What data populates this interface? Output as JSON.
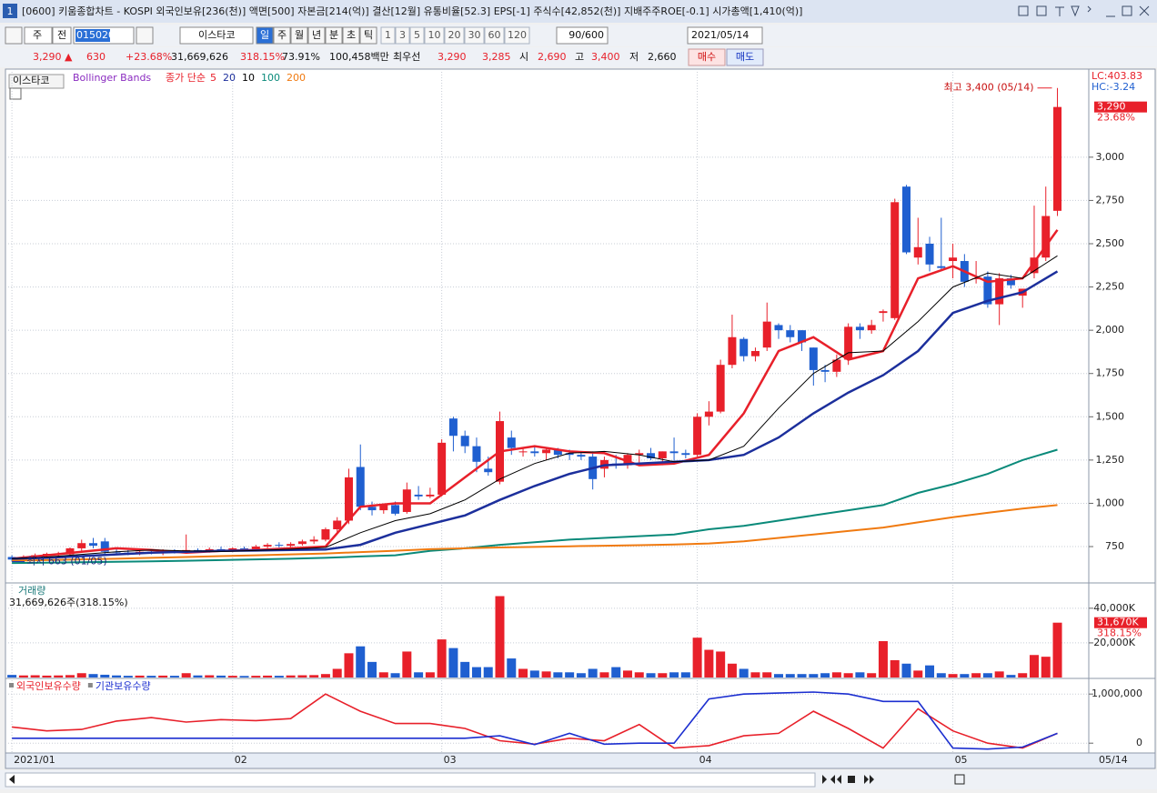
{
  "window": {
    "icon": "1",
    "title": "[0600] 키움종합차트 - KOSPI 외국인보유[236(천)] 액면[500] 자본금[214(억)] 결산[12월] 유통비율[52.3] EPS[-1] 주식수[42,852(천)] 지배주주ROE[-0.1] 시가총액[1,410(억)]"
  },
  "toolbar": {
    "market": "주",
    "range": "전",
    "code": "015020",
    "name": "이스타코",
    "periods": [
      "일",
      "주",
      "월",
      "년",
      "분",
      "초",
      "틱"
    ],
    "intervals": [
      "1",
      "3",
      "5",
      "10",
      "20",
      "30",
      "60",
      "120"
    ],
    "count": "90/600",
    "date": "2021/05/14"
  },
  "quote": {
    "price": "3,290 ▲",
    "change": "630",
    "rate": "+23.68%",
    "volume": "31,669,626",
    "volume_rate": "318.15%",
    "ratio": "73.91%",
    "amount": "100,458백만",
    "best": "최우선",
    "ask": "3,290",
    "bid": "3,285",
    "open_label": "시",
    "open": "2,690",
    "high_label": "고",
    "high": "3,400",
    "low_label": "저",
    "low": "2,660",
    "buy": "매수",
    "sell": "매도"
  },
  "chart_data": [
    {
      "type": "candlestick",
      "name": "이스타코",
      "indicator": "Bollinger Bands",
      "ma_label": "종가 단순",
      "ohlc": [
        [
          690,
          700,
          663,
          675
        ],
        [
          675,
          700,
          670,
          690
        ],
        [
          690,
          710,
          680,
          700
        ],
        [
          700,
          715,
          690,
          708
        ],
        [
          705,
          720,
          695,
          710
        ],
        [
          705,
          745,
          700,
          740
        ],
        [
          740,
          790,
          725,
          770
        ],
        [
          770,
          800,
          740,
          755
        ],
        [
          780,
          800,
          700,
          720
        ],
        [
          720,
          740,
          705,
          715
        ],
        [
          715,
          730,
          700,
          710
        ],
        [
          710,
          725,
          700,
          720
        ],
        [
          720,
          730,
          705,
          712
        ],
        [
          712,
          735,
          700,
          725
        ],
        [
          725,
          735,
          710,
          718
        ],
        [
          718,
          820,
          710,
          730
        ],
        [
          730,
          740,
          715,
          725
        ],
        [
          725,
          745,
          715,
          735
        ],
        [
          735,
          750,
          720,
          728
        ],
        [
          728,
          745,
          720,
          740
        ],
        [
          740,
          750,
          725,
          735
        ],
        [
          735,
          760,
          728,
          750
        ],
        [
          750,
          770,
          740,
          760
        ],
        [
          760,
          775,
          745,
          755
        ],
        [
          755,
          775,
          745,
          765
        ],
        [
          765,
          790,
          755,
          780
        ],
        [
          780,
          810,
          765,
          790
        ],
        [
          790,
          860,
          780,
          850
        ],
        [
          850,
          920,
          830,
          900
        ],
        [
          900,
          1200,
          880,
          1150
        ],
        [
          1210,
          1340,
          960,
          980
        ],
        [
          980,
          1010,
          930,
          960
        ],
        [
          960,
          1000,
          940,
          990
        ],
        [
          990,
          1010,
          930,
          940
        ],
        [
          950,
          1120,
          940,
          1080
        ],
        [
          1050,
          1100,
          1020,
          1040
        ],
        [
          1040,
          1090,
          1030,
          1050
        ],
        [
          1050,
          1370,
          1040,
          1350
        ],
        [
          1490,
          1500,
          1300,
          1390
        ],
        [
          1390,
          1420,
          1290,
          1330
        ],
        [
          1330,
          1380,
          1180,
          1240
        ],
        [
          1200,
          1270,
          1160,
          1180
        ],
        [
          1125,
          1530,
          1110,
          1475
        ],
        [
          1380,
          1420,
          1280,
          1320
        ],
        [
          1300,
          1320,
          1270,
          1300
        ],
        [
          1300,
          1330,
          1270,
          1290
        ],
        [
          1290,
          1320,
          1250,
          1310
        ],
        [
          1310,
          1320,
          1260,
          1280
        ],
        [
          1290,
          1310,
          1250,
          1280
        ],
        [
          1280,
          1300,
          1250,
          1270
        ],
        [
          1270,
          1300,
          1080,
          1140
        ],
        [
          1200,
          1270,
          1150,
          1250
        ],
        [
          1230,
          1280,
          1200,
          1220
        ],
        [
          1220,
          1290,
          1200,
          1280
        ],
        [
          1280,
          1310,
          1230,
          1290
        ],
        [
          1290,
          1320,
          1250,
          1260
        ],
        [
          1260,
          1300,
          1220,
          1300
        ],
        [
          1300,
          1380,
          1250,
          1290
        ],
        [
          1290,
          1310,
          1260,
          1280
        ],
        [
          1280,
          1520,
          1270,
          1500
        ],
        [
          1500,
          1590,
          1450,
          1530
        ],
        [
          1530,
          1830,
          1520,
          1800
        ],
        [
          1800,
          2090,
          1780,
          1960
        ],
        [
          1950,
          1960,
          1820,
          1850
        ],
        [
          1850,
          1900,
          1820,
          1880
        ],
        [
          1900,
          2160,
          1880,
          2050
        ],
        [
          2030,
          2040,
          1950,
          2000
        ],
        [
          2000,
          2030,
          1930,
          1960
        ],
        [
          2000,
          2000,
          1880,
          1930
        ],
        [
          1900,
          1900,
          1680,
          1770
        ],
        [
          1770,
          1800,
          1700,
          1760
        ],
        [
          1760,
          1860,
          1730,
          1830
        ],
        [
          1830,
          2040,
          1800,
          2020
        ],
        [
          2020,
          2040,
          1950,
          2000
        ],
        [
          2000,
          2060,
          1980,
          2030
        ],
        [
          2100,
          2120,
          2050,
          2110
        ],
        [
          2070,
          2760,
          2060,
          2740
        ],
        [
          2830,
          2840,
          2440,
          2450
        ],
        [
          2420,
          2650,
          2380,
          2480
        ],
        [
          2500,
          2540,
          2340,
          2380
        ],
        [
          2370,
          2650,
          2340,
          2360
        ],
        [
          2400,
          2500,
          2300,
          2420
        ],
        [
          2400,
          2440,
          2250,
          2280
        ],
        [
          2300,
          2400,
          2270,
          2300
        ],
        [
          2310,
          2340,
          2130,
          2150
        ],
        [
          2150,
          2330,
          2030,
          2300
        ],
        [
          2300,
          2320,
          2240,
          2260
        ],
        [
          2200,
          2240,
          2130,
          2240
        ],
        [
          2330,
          2720,
          2300,
          2420
        ],
        [
          2420,
          2830,
          2400,
          2660
        ],
        [
          2690,
          3400,
          2660,
          3290
        ]
      ],
      "xlim": [
        -0.4,
        92.7
      ],
      "xticks": [
        {
          "value": 0,
          "label": "2021/01"
        },
        {
          "value": 19,
          "label": "02"
        },
        {
          "value": 37,
          "label": "03"
        },
        {
          "value": 59,
          "label": "04"
        },
        {
          "value": 81,
          "label": "05"
        }
      ],
      "x_end_label": "05/14",
      "ylim": [
        540,
        3430
      ],
      "yticks": [
        750,
        {
          "value": 1000,
          "label": "1,000"
        },
        {
          "value": 1250,
          "label": "1,250"
        },
        {
          "value": 1500,
          "label": "1,500"
        },
        {
          "value": 1750,
          "label": "1,750"
        },
        {
          "value": 2000,
          "label": "2,000"
        },
        {
          "value": 2250,
          "label": "2,250"
        },
        {
          "value": 2500,
          "label": "2,500"
        },
        {
          "value": 2750,
          "label": "2,750"
        },
        {
          "value": 3000,
          "label": "3,000"
        }
      ],
      "line_x": [
        0,
        3,
        6,
        9,
        12,
        15,
        18,
        21,
        24,
        27,
        30,
        33,
        36,
        39,
        42,
        45,
        48,
        51,
        54,
        57,
        60,
        63,
        66,
        69,
        72,
        75,
        78,
        81,
        84,
        87,
        90
      ],
      "series": [
        {
          "name": "5",
          "color": "#e8202a",
          "values": [
            680,
            700,
            720,
            740,
            730,
            715,
            725,
            730,
            740,
            750,
            980,
            1000,
            1000,
            1150,
            1300,
            1330,
            1300,
            1290,
            1220,
            1230,
            1280,
            1520,
            1880,
            1960,
            1830,
            1880,
            2300,
            2370,
            2280,
            2300,
            2580
          ]
        },
        {
          "name": "20",
          "color": "#1c2f9c",
          "values": [
            680,
            685,
            695,
            705,
            715,
            720,
            725,
            727,
            730,
            733,
            760,
            830,
            880,
            930,
            1020,
            1100,
            1170,
            1220,
            1230,
            1240,
            1250,
            1280,
            1380,
            1520,
            1640,
            1740,
            1880,
            2100,
            2170,
            2220,
            2340
          ]
        },
        {
          "name": "10",
          "color": "#000000",
          "values": [
            680,
            690,
            705,
            720,
            730,
            725,
            722,
            727,
            735,
            745,
            830,
            900,
            940,
            1020,
            1140,
            1230,
            1290,
            1300,
            1280,
            1240,
            1250,
            1330,
            1550,
            1750,
            1870,
            1880,
            2050,
            2250,
            2330,
            2300,
            2430
          ]
        },
        {
          "name": "100",
          "color": "#0a8a7a",
          "values": [
            655,
            657,
            660,
            662,
            665,
            668,
            672,
            676,
            680,
            685,
            693,
            700,
            725,
            740,
            760,
            775,
            790,
            800,
            810,
            820,
            850,
            870,
            900,
            930,
            960,
            990,
            1060,
            1110,
            1170,
            1250,
            1310
          ]
        },
        {
          "name": "200",
          "color": "#f07a10",
          "values": [
            668,
            672,
            676,
            680,
            685,
            690,
            695,
            700,
            705,
            710,
            718,
            726,
            735,
            740,
            745,
            748,
            752,
            755,
            758,
            762,
            768,
            780,
            800,
            820,
            840,
            860,
            890,
            920,
            945,
            970,
            990
          ]
        }
      ],
      "annotations": [
        {
          "text": "최고 3,400 (05/14)",
          "x": 90,
          "y": 3400
        },
        {
          "text": "최저 663 (01/05)",
          "x": 0,
          "y": 663
        }
      ],
      "lc_label": "LC:403.83",
      "hc_label": "HC:-3.24",
      "last": {
        "value": 3290,
        "label": "3,290"
      },
      "last_rate": "23.68%"
    },
    {
      "type": "bar",
      "title": "거래량",
      "subtitle": "31,669,626주(318.15%)",
      "values": [
        1500,
        1200,
        1300,
        1100,
        1200,
        1400,
        2500,
        2000,
        1600,
        1200,
        1000,
        1100,
        1000,
        1100,
        1000,
        2500,
        1200,
        1300,
        1100,
        1000,
        900,
        1000,
        1100,
        1000,
        1200,
        1300,
        1400,
        2000,
        5000,
        14000,
        18000,
        9000,
        3000,
        2500,
        15000,
        3000,
        3000,
        22000,
        17000,
        9000,
        6000,
        6000,
        47000,
        11000,
        5000,
        4000,
        3500,
        3000,
        3000,
        2500,
        5000,
        3000,
        6000,
        4000,
        3000,
        2500,
        2500,
        3000,
        3000,
        23000,
        16000,
        15000,
        8000,
        5000,
        3000,
        3000,
        2000,
        2000,
        2000,
        2000,
        2500,
        3000,
        2500,
        3000,
        2500,
        21000,
        10000,
        8000,
        4000,
        7000,
        2500,
        2000,
        2000,
        2500,
        2500,
        3500,
        1500,
        2500,
        13000,
        12000,
        31670
      ],
      "xlim": [
        -0.4,
        92.7
      ],
      "ylim": [
        0,
        52000
      ],
      "yticks": [
        {
          "value": 20000,
          "label": "20,000K"
        },
        {
          "value": 40000,
          "label": "40,000K"
        }
      ],
      "last_label": "31,670K",
      "last_rate": "318.15%"
    },
    {
      "type": "line",
      "x": [
        0,
        3,
        6,
        9,
        12,
        15,
        18,
        21,
        24,
        27,
        30,
        33,
        36,
        39,
        42,
        45,
        48,
        51,
        54,
        57,
        60,
        63,
        66,
        69,
        72,
        75,
        78,
        81,
        84,
        87,
        90
      ],
      "xlim": [
        -0.4,
        92.7
      ],
      "series": [
        {
          "name": "외국인보유수량",
          "color": "#e8202a",
          "values": [
            330000,
            250000,
            280000,
            450000,
            520000,
            430000,
            480000,
            460000,
            500000,
            1000000,
            650000,
            400000,
            400000,
            300000,
            50000,
            -20000,
            100000,
            50000,
            380000,
            -100000,
            -50000,
            150000,
            200000,
            650000,
            300000,
            -100000,
            700000,
            250000,
            0,
            -100000,
            200000
          ]
        },
        {
          "name": "기관보유수량",
          "color": "#1c2fd0",
          "values": [
            100000,
            100000,
            100000,
            100000,
            100000,
            100000,
            100000,
            100000,
            100000,
            100000,
            100000,
            100000,
            100000,
            100000,
            150000,
            -30000,
            200000,
            -20000,
            0,
            0,
            900000,
            1000000,
            1020000,
            1040000,
            1000000,
            850000,
            850000,
            -100000,
            -120000,
            -80000,
            200000
          ]
        }
      ],
      "ylim": [
        -200000,
        1300000
      ],
      "yticks": [
        0,
        {
          "value": 1000000,
          "label": "1,000,000"
        }
      ]
    }
  ]
}
